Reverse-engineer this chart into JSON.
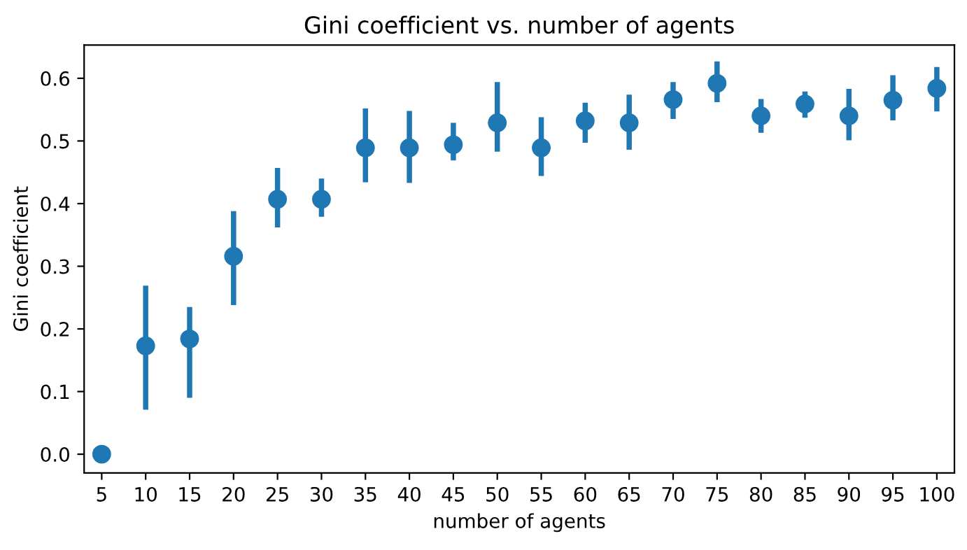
{
  "chart_data": {
    "type": "scatter",
    "title": "Gini coefficient vs. number of agents",
    "xlabel": "number of agents",
    "ylabel": "Gini coefficient",
    "categories": [
      "5",
      "10",
      "15",
      "20",
      "25",
      "30",
      "35",
      "40",
      "45",
      "50",
      "55",
      "60",
      "65",
      "70",
      "75",
      "80",
      "85",
      "90",
      "95",
      "100"
    ],
    "series": [
      {
        "color": "#1f77b4",
        "values": [
          0.0,
          0.173,
          0.184,
          0.316,
          0.407,
          0.407,
          0.489,
          0.489,
          0.494,
          0.529,
          0.489,
          0.532,
          0.529,
          0.566,
          0.592,
          0.54,
          0.559,
          0.54,
          0.565,
          0.584
        ],
        "errors": [
          null,
          [
            0.071,
            0.269
          ],
          [
            0.09,
            0.235
          ],
          [
            0.238,
            0.388
          ],
          [
            0.362,
            0.457
          ],
          [
            0.379,
            0.44
          ],
          [
            0.434,
            0.552
          ],
          [
            0.433,
            0.548
          ],
          [
            0.469,
            0.529
          ],
          [
            0.483,
            0.594
          ],
          [
            0.444,
            0.538
          ],
          [
            0.497,
            0.561
          ],
          [
            0.486,
            0.574
          ],
          [
            0.535,
            0.594
          ],
          [
            0.562,
            0.627
          ],
          [
            0.513,
            0.567
          ],
          [
            0.537,
            0.579
          ],
          [
            0.501,
            0.583
          ],
          [
            0.533,
            0.605
          ],
          [
            0.547,
            0.618
          ]
        ]
      }
    ],
    "marker": "circle",
    "ylim": [
      -0.03,
      0.653
    ],
    "yticks": [
      {
        "value": 0,
        "label": "0.0"
      },
      0.1,
      0.2,
      0.3,
      0.4,
      0.5,
      0.6
    ],
    "grid": false,
    "legend": false
  }
}
